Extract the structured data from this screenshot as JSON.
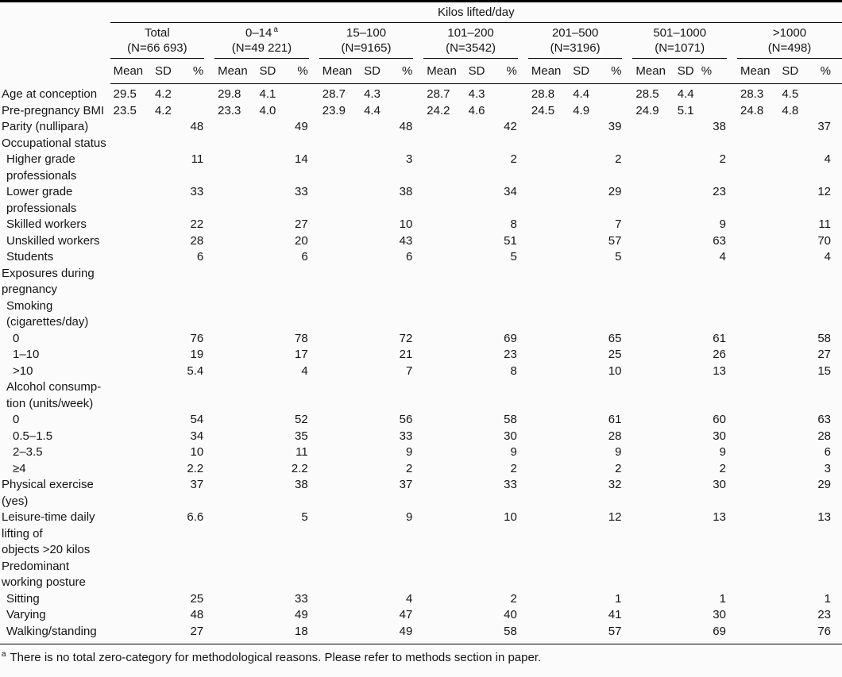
{
  "table": {
    "spanner": "Kilos lifted/day",
    "groups": [
      {
        "range": "Total",
        "sup": "",
        "n": "(N=66 693)"
      },
      {
        "range": "0–14",
        "sup": "a",
        "n": "(N=49 221)"
      },
      {
        "range": "15–100",
        "sup": "",
        "n": "(N=9165)"
      },
      {
        "range": "101–200",
        "sup": "",
        "n": "(N=3542)"
      },
      {
        "range": "201–500",
        "sup": "",
        "n": "(N=3196)"
      },
      {
        "range": "501–1000",
        "sup": "",
        "n": "(N=1071)"
      },
      {
        "range": ">1000",
        "sup": "",
        "n": "(N=498)"
      }
    ],
    "subheaders": {
      "mean": "Mean",
      "sd": "SD",
      "pct": "%"
    },
    "rows": [
      {
        "label": "Age at conception",
        "indent": 0,
        "means": [
          "29.5",
          "29.8",
          "28.7",
          "28.7",
          "28.8",
          "28.5",
          "28.3"
        ],
        "sds": [
          "4.2",
          "4.1",
          "4.3",
          "4.3",
          "4.4",
          "4.4",
          "4.5"
        ]
      },
      {
        "label": "Pre-pregnancy BMI",
        "indent": 0,
        "means": [
          "23.5",
          "23.3",
          "23.9",
          "24.2",
          "24.5",
          "24.9",
          "24.8"
        ],
        "sds": [
          "4.2",
          "4.0",
          "4.4",
          "4.6",
          "4.9",
          "5.1",
          "4.8"
        ]
      },
      {
        "label": "Parity (nullipara)",
        "indent": 0,
        "pcts": [
          "48",
          "49",
          "48",
          "42",
          "39",
          "38",
          "37"
        ]
      },
      {
        "label": "Occupational status",
        "indent": 0
      },
      {
        "label": "Higher grade\nprofessionals",
        "indent": 1,
        "pcts": [
          "11",
          "14",
          "3",
          "2",
          "2",
          "2",
          "4"
        ]
      },
      {
        "label": "Lower grade\nprofessionals",
        "indent": 1,
        "pcts": [
          "33",
          "33",
          "38",
          "34",
          "29",
          "23",
          "12"
        ]
      },
      {
        "label": "Skilled workers",
        "indent": 1,
        "pcts": [
          "22",
          "27",
          "10",
          "8",
          "7",
          "9",
          "11"
        ]
      },
      {
        "label": "Unskilled workers",
        "indent": 1,
        "pcts": [
          "28",
          "20",
          "43",
          "51",
          "57",
          "63",
          "70"
        ]
      },
      {
        "label": "Students",
        "indent": 1,
        "pcts": [
          "6",
          "6",
          "6",
          "5",
          "5",
          "4",
          "4"
        ]
      },
      {
        "label": "Exposures during\npregnancy",
        "indent": 0
      },
      {
        "label": "Smoking\n(cigarettes/day)",
        "indent": 1
      },
      {
        "label": "0",
        "indent": 2,
        "pcts": [
          "76",
          "78",
          "72",
          "69",
          "65",
          "61",
          "58"
        ]
      },
      {
        "label": "1–10",
        "indent": 2,
        "pcts": [
          "19",
          "17",
          "21",
          "23",
          "25",
          "26",
          "27"
        ]
      },
      {
        "label": ">10",
        "indent": 2,
        "pcts": [
          "5.4",
          "4",
          "7",
          "8",
          "10",
          "13",
          "15"
        ]
      },
      {
        "label": "Alcohol consump-\ntion (units/week)",
        "indent": 1
      },
      {
        "label": "0",
        "indent": 2,
        "pcts": [
          "54",
          "52",
          "56",
          "58",
          "61",
          "60",
          "63"
        ]
      },
      {
        "label": "0.5–1.5",
        "indent": 2,
        "pcts": [
          "34",
          "35",
          "33",
          "30",
          "28",
          "30",
          "28"
        ]
      },
      {
        "label": "2–3.5",
        "indent": 2,
        "pcts": [
          "10",
          "11",
          "9",
          "9",
          "9",
          "9",
          "6"
        ]
      },
      {
        "label": "≥4",
        "indent": 2,
        "pcts": [
          "2.2",
          "2.2",
          "2",
          "2",
          "2",
          "2",
          "3"
        ]
      },
      {
        "label": "Physical exercise\n(yes)",
        "indent": 0,
        "pcts": [
          "37",
          "38",
          "37",
          "33",
          "32",
          "30",
          "29"
        ]
      },
      {
        "label": "Leisure-time daily\nlifting of\nobjects >20 kilos",
        "indent": 0,
        "pcts": [
          "6.6",
          "5",
          "9",
          "10",
          "12",
          "13",
          "13"
        ]
      },
      {
        "label": "Predominant\nworking posture",
        "indent": 0
      },
      {
        "label": "Sitting",
        "indent": 1,
        "pcts": [
          "25",
          "33",
          "4",
          "2",
          "1",
          "1",
          "1"
        ]
      },
      {
        "label": "Varying",
        "indent": 1,
        "pcts": [
          "48",
          "49",
          "47",
          "40",
          "41",
          "30",
          "23"
        ]
      },
      {
        "label": "Walking/standing",
        "indent": 1,
        "pcts": [
          "27",
          "18",
          "49",
          "58",
          "57",
          "69",
          "76"
        ]
      }
    ]
  },
  "footnote": {
    "marker": "a",
    "text": "There is no total zero-category for methodological reasons. Please refer to methods section in paper."
  }
}
